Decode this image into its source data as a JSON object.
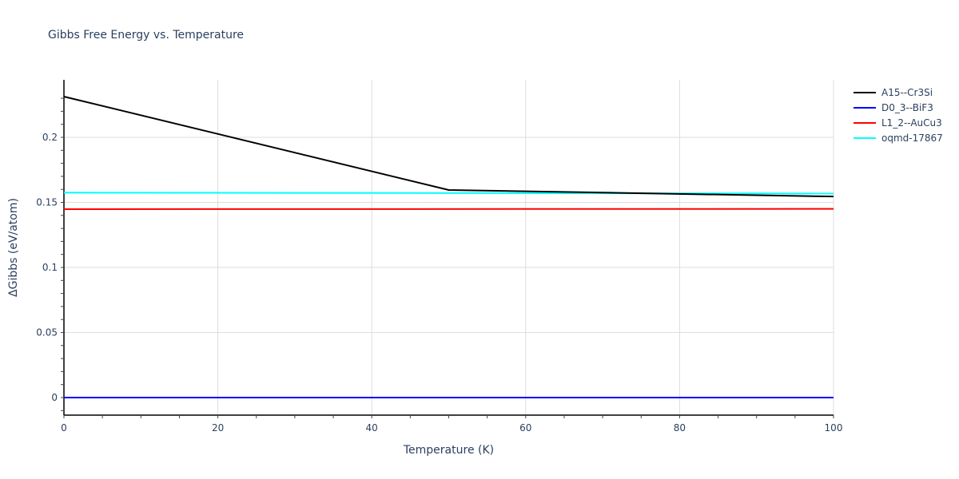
{
  "chart_data": {
    "type": "line",
    "title": "Gibbs Free Energy vs. Temperature",
    "xlabel": "Temperature (K)",
    "ylabel": "ΔGibbs (eV/atom)",
    "xlim": [
      0,
      100
    ],
    "ylim": [
      -0.013,
      0.243
    ],
    "xticks": [
      0,
      20,
      40,
      60,
      80,
      100
    ],
    "yticks": [
      0,
      0.05,
      0.1,
      0.15,
      0.2
    ],
    "ytick_labels": [
      "0",
      "0.05",
      "0.1",
      "0.15",
      "0.2"
    ],
    "grid": true,
    "legend_position": "right",
    "series": [
      {
        "name": "A15--Cr3Si",
        "color": "#000000",
        "x": [
          0,
          50,
          100
        ],
        "y": [
          0.2313,
          0.1595,
          0.1545
        ]
      },
      {
        "name": "D0_3--BiF3",
        "color": "#0000ff",
        "x": [
          0,
          100
        ],
        "y": [
          0.0,
          0.0
        ]
      },
      {
        "name": "L1_2--AuCu3",
        "color": "#ff0000",
        "x": [
          0,
          100
        ],
        "y": [
          0.1448,
          0.145
        ]
      },
      {
        "name": "oqmd-17867",
        "color": "#00ffff",
        "x": [
          0,
          100
        ],
        "y": [
          0.1575,
          0.1568
        ]
      }
    ]
  }
}
